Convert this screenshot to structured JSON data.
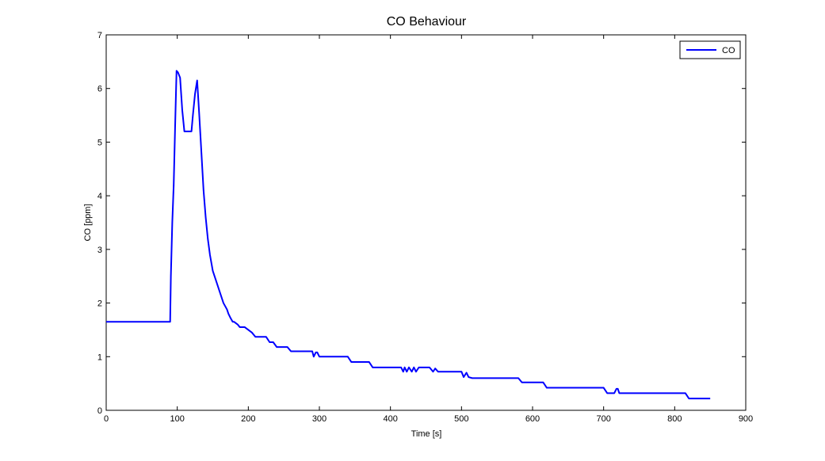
{
  "chart_data": {
    "type": "line",
    "title": "CO Behaviour",
    "xlabel": "Time [s]",
    "ylabel": "CO  [ppm]",
    "xlim": [
      0,
      900
    ],
    "ylim": [
      0,
      7
    ],
    "xticks": [
      0,
      100,
      200,
      300,
      400,
      500,
      600,
      700,
      800,
      900
    ],
    "yticks": [
      0,
      1,
      2,
      3,
      4,
      5,
      6,
      7
    ],
    "grid": false,
    "legend_position": "top-right",
    "series": [
      {
        "name": "CO",
        "color": "#0000ff",
        "x": [
          0,
          90,
          91,
          93,
          95,
          97,
          99,
          101,
          104,
          107,
          110,
          115,
          120,
          122,
          125,
          128,
          131,
          134,
          137,
          140,
          143,
          146,
          150,
          155,
          160,
          165,
          170,
          172,
          175,
          178,
          180,
          185,
          188,
          195,
          200,
          205,
          210,
          225,
          230,
          235,
          240,
          255,
          260,
          290,
          292,
          295,
          297,
          300,
          305,
          340,
          345,
          370,
          375,
          415,
          418,
          420,
          423,
          426,
          430,
          433,
          436,
          440,
          445,
          455,
          460,
          463,
          467,
          470,
          500,
          503,
          507,
          510,
          515,
          580,
          585,
          615,
          620,
          700,
          705,
          715,
          718,
          720,
          722,
          725,
          815,
          820,
          850
        ],
        "y": [
          1.65,
          1.65,
          2.5,
          3.5,
          4.2,
          5.3,
          6.33,
          6.3,
          6.2,
          5.6,
          5.2,
          5.2,
          5.2,
          5.5,
          5.9,
          6.15,
          5.5,
          4.8,
          4.1,
          3.6,
          3.2,
          2.9,
          2.6,
          2.4,
          2.2,
          2.0,
          1.88,
          1.8,
          1.72,
          1.65,
          1.65,
          1.6,
          1.55,
          1.55,
          1.5,
          1.45,
          1.37,
          1.37,
          1.27,
          1.27,
          1.18,
          1.18,
          1.1,
          1.1,
          1.0,
          1.08,
          1.08,
          1.0,
          1.0,
          1.0,
          0.9,
          0.9,
          0.8,
          0.8,
          0.72,
          0.8,
          0.72,
          0.8,
          0.72,
          0.8,
          0.72,
          0.8,
          0.8,
          0.8,
          0.72,
          0.78,
          0.72,
          0.72,
          0.72,
          0.62,
          0.7,
          0.62,
          0.6,
          0.6,
          0.52,
          0.52,
          0.42,
          0.42,
          0.32,
          0.32,
          0.4,
          0.4,
          0.32,
          0.32,
          0.32,
          0.22,
          0.22
        ]
      }
    ]
  }
}
